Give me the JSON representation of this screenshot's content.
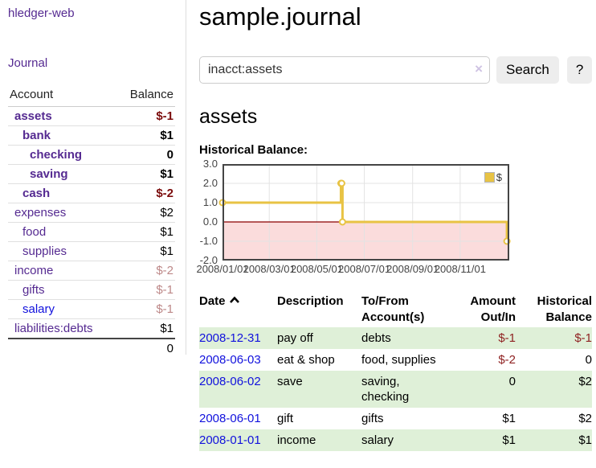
{
  "app": {
    "title": "hledger-web"
  },
  "nav": {
    "journal": "Journal"
  },
  "colors": {
    "link_purple": "#552a91",
    "link_blue": "#1111dd",
    "negative_strong": "#7b0c0c",
    "negative": "#8f2222",
    "negative_dim": "#bd8888",
    "row_stripe_green": "#dff0d8",
    "series_yellow": "#e8c344",
    "negative_region_pink": "#fbdcdc",
    "zero_line_red": "#8b0000"
  },
  "sidebar": {
    "table": {
      "headers": [
        "Account",
        "Balance"
      ],
      "rows": [
        {
          "account": "assets",
          "balance": "$-1",
          "level": 1,
          "bold": true,
          "neg": "strong"
        },
        {
          "account": "bank",
          "balance": "$1",
          "level": 2,
          "bold": true
        },
        {
          "account": "checking",
          "balance": "0",
          "level": 3,
          "bold": true
        },
        {
          "account": "saving",
          "balance": "$1",
          "level": 3,
          "bold": true
        },
        {
          "account": "cash",
          "balance": "$-2",
          "level": 2,
          "bold": true,
          "neg": "strong"
        },
        {
          "account": "expenses",
          "balance": "$2",
          "level": 1,
          "bold": false
        },
        {
          "account": "food",
          "balance": "$1",
          "level": 2,
          "bold": false
        },
        {
          "account": "supplies",
          "balance": "$1",
          "level": 2,
          "bold": false
        },
        {
          "account": "income",
          "balance": "$-2",
          "level": 1,
          "bold": false,
          "neg": "dim"
        },
        {
          "account": "gifts",
          "balance": "$-1",
          "level": 2,
          "bold": false,
          "neg": "dim"
        },
        {
          "account": "salary",
          "balance": "$-1",
          "level": 2,
          "bold": false,
          "neg": "dim",
          "link": "blue"
        },
        {
          "account": "liabilities:debts",
          "balance": "$1",
          "level": 1,
          "bold": false
        }
      ],
      "total_balance": "0"
    }
  },
  "header": {
    "title": "sample.journal"
  },
  "search": {
    "query": "inacct:assets",
    "clear_icon": "×",
    "button_label": "Search",
    "help_label": "?"
  },
  "section": {
    "heading": "assets",
    "chart_label": "Historical Balance:"
  },
  "chart_data": {
    "type": "line",
    "title": "Historical Balance",
    "step": true,
    "series": [
      {
        "name": "$",
        "color": "#e8c344",
        "points": [
          {
            "x": "2008-01-01",
            "y": 1
          },
          {
            "x": "2008-06-01",
            "y": 2
          },
          {
            "x": "2008-06-02",
            "y": 2
          },
          {
            "x": "2008-06-03",
            "y": 0
          },
          {
            "x": "2008-12-31",
            "y": -1
          }
        ]
      }
    ],
    "xlim": [
      "2008-01-01",
      "2009-01-03"
    ],
    "ylim": [
      -2,
      3
    ],
    "y_ticks": [
      "3.0",
      "2.0",
      "1.0",
      "0.0",
      "-1.0",
      "-2.0"
    ],
    "x_ticks": [
      "2008/01/01",
      "2008/03/01",
      "2008/05/01",
      "2008/07/01",
      "2008/09/01",
      "2008/11/01"
    ],
    "grid": true,
    "legend_position": "top-right",
    "legend_label": "$",
    "negative_region_shaded": true
  },
  "register": {
    "columns": [
      {
        "label": "Date",
        "sorted": "asc",
        "align": "left"
      },
      {
        "label": "Description",
        "align": "left"
      },
      {
        "label": "To/From Account(s)",
        "align": "left"
      },
      {
        "label": "Amount Out/In",
        "align": "right"
      },
      {
        "label": "Historical Balance",
        "align": "right"
      }
    ],
    "rows": [
      {
        "date": "2008-12-31",
        "description": "pay off",
        "accounts": "debts",
        "amount": "$-1",
        "balance": "$-1"
      },
      {
        "date": "2008-06-03",
        "description": "eat & shop",
        "accounts": "food, supplies",
        "amount": "$-2",
        "balance": "0"
      },
      {
        "date": "2008-06-02",
        "description": "save",
        "accounts": "saving, checking",
        "amount": "0",
        "balance": "$2"
      },
      {
        "date": "2008-06-01",
        "description": "gift",
        "accounts": "gifts",
        "amount": "$1",
        "balance": "$2"
      },
      {
        "date": "2008-01-01",
        "description": "income",
        "accounts": "salary",
        "amount": "$1",
        "balance": "$1"
      }
    ]
  }
}
